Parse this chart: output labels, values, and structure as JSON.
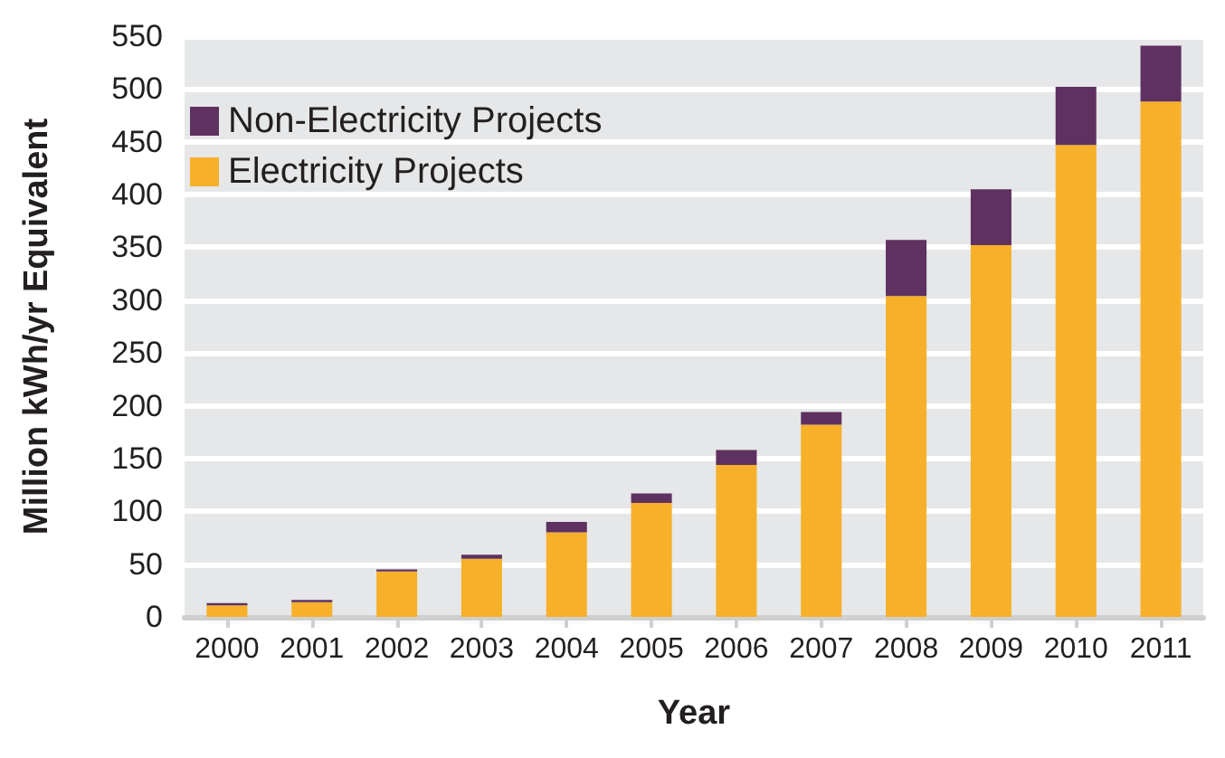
{
  "chart_data": {
    "type": "bar",
    "stacked": true,
    "xlabel": "Year",
    "ylabel": "Million kWh/yr Equivalent",
    "categories": [
      "2000",
      "2001",
      "2002",
      "2003",
      "2004",
      "2005",
      "2006",
      "2007",
      "2008",
      "2009",
      "2010",
      "2011"
    ],
    "series": [
      {
        "name": "Electricity Projects",
        "color": "#f6b02a",
        "values": [
          11,
          14,
          43,
          55,
          80,
          108,
          144,
          182,
          304,
          352,
          447,
          488
        ]
      },
      {
        "name": "Non-Electricity Projects",
        "color": "#5e3160",
        "values": [
          2,
          2,
          2,
          4,
          10,
          9,
          14,
          12,
          53,
          53,
          55,
          53
        ]
      }
    ],
    "ylim": [
      0,
      550
    ],
    "yticks": [
      0,
      50,
      100,
      150,
      200,
      250,
      300,
      350,
      400,
      450,
      500,
      550
    ],
    "grid": "y",
    "legend": "top left"
  }
}
